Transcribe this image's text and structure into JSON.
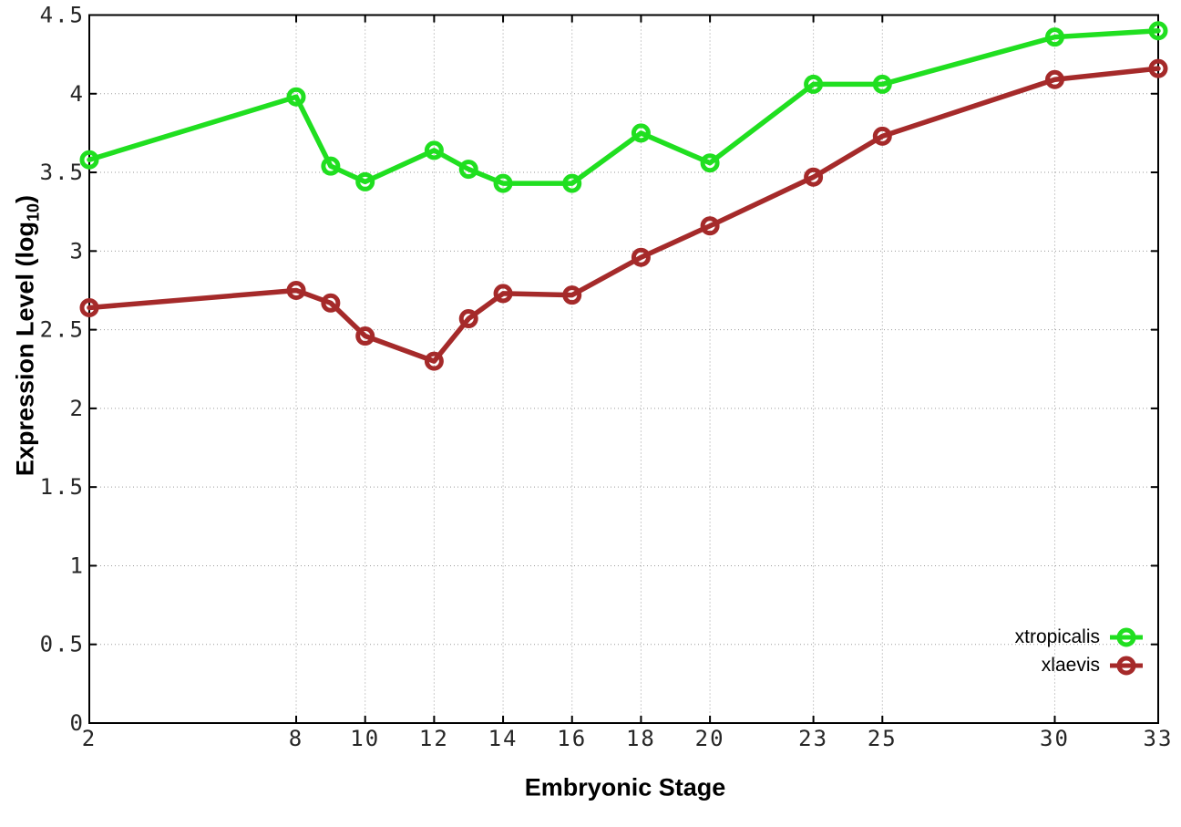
{
  "chart_data": {
    "type": "line",
    "title": "",
    "xlabel": "Embryonic Stage",
    "ylabel": {
      "prefix": "Expression Level (log",
      "subscript": "10",
      "suffix": ")"
    },
    "xlim": [
      2,
      33
    ],
    "ylim": [
      0,
      4.5
    ],
    "xticks": [
      2,
      8,
      10,
      12,
      14,
      16,
      18,
      20,
      23,
      25,
      30,
      33
    ],
    "yticks": [
      "0",
      "0.5",
      "1",
      "1.5",
      "2",
      "2.5",
      "3",
      "3.5",
      "4",
      "4.5"
    ],
    "grid": true,
    "grid_style": "dotted",
    "legend_position": "bottom-right-inside",
    "axis_color": "#000000",
    "grid_color": "#9a9a9a",
    "tick_label_color": "#262626",
    "x": [
      2,
      8,
      9,
      10,
      12,
      13,
      14,
      16,
      18,
      20,
      23,
      25,
      30,
      33
    ],
    "series": [
      {
        "name": "xtropicalis",
        "color": "#20DF20",
        "marker": "open-circle",
        "values": [
          3.58,
          3.98,
          3.54,
          3.44,
          3.64,
          3.52,
          3.43,
          3.43,
          3.75,
          3.56,
          4.06,
          4.06,
          4.36,
          4.4
        ]
      },
      {
        "name": "xlaevis",
        "color": "#A52A2A",
        "marker": "open-circle",
        "values": [
          2.64,
          2.75,
          2.67,
          2.46,
          2.3,
          2.57,
          2.73,
          2.72,
          2.96,
          3.16,
          3.47,
          3.73,
          4.09,
          4.16
        ]
      }
    ]
  }
}
